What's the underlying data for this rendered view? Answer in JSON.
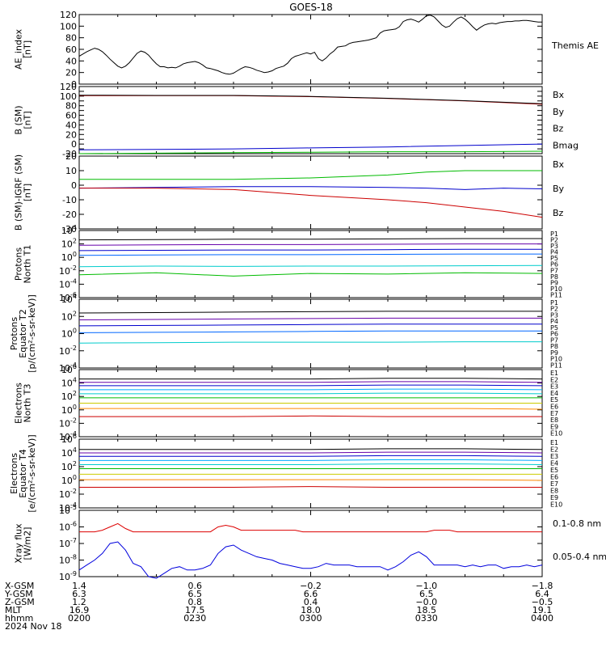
{
  "title": "GOES-18",
  "chart_data": [
    {
      "type": "line",
      "panel": "ae",
      "ylabel": [
        "AE_index",
        "[nT]"
      ],
      "ylim": [
        0,
        120
      ],
      "yticks": [
        0,
        20,
        40,
        60,
        80,
        100,
        120
      ],
      "x": [
        0,
        0.5,
        1,
        1.5,
        2,
        2.5,
        3,
        3.5,
        4,
        4.5,
        5,
        5.5,
        6,
        6.5,
        7,
        7.5,
        8,
        8.5,
        9,
        9.5,
        10,
        10.5,
        11,
        11.5,
        12,
        12.5,
        13,
        13.5,
        14,
        14.5,
        15,
        15.5,
        16,
        16.5,
        17,
        17.5,
        18,
        18.5,
        19,
        19.5,
        20,
        20.5,
        21,
        21.5,
        22,
        22.5,
        23,
        23.5,
        24,
        24.5,
        25,
        25.5,
        26,
        26.5,
        27,
        27.5,
        28,
        28.5,
        29,
        29.5,
        30,
        30.5,
        31,
        31.5,
        32,
        32.5,
        33,
        33.5,
        34,
        34.5,
        35,
        35.5,
        36,
        36.5,
        37,
        37.5,
        38,
        38.5,
        39,
        39.5,
        40,
        40.5,
        41,
        41.5,
        42,
        42.5,
        43,
        43.5,
        44,
        44.5,
        45,
        45.5,
        46,
        46.5,
        47,
        47.5,
        48,
        48.5,
        49,
        49.5,
        50,
        50.5,
        51,
        51.5,
        52,
        52.5,
        53,
        53.5,
        54,
        54.5,
        55,
        55.5,
        56,
        56.5,
        57,
        57.5,
        58,
        58.5,
        59,
        59.5,
        60
      ],
      "series": [
        {
          "name": "Themis AE",
          "color": "#000000",
          "values": [
            48,
            52,
            56,
            59,
            62,
            60,
            56,
            50,
            43,
            37,
            31,
            28,
            31,
            37,
            45,
            53,
            57,
            55,
            50,
            42,
            35,
            30,
            30,
            28,
            29,
            28,
            31,
            35,
            37,
            38,
            39,
            37,
            33,
            28,
            27,
            25,
            23,
            20,
            18,
            17,
            19,
            23,
            27,
            30,
            29,
            27,
            24,
            22,
            20,
            21,
            23,
            27,
            29,
            31,
            36,
            44,
            48,
            50,
            52,
            54,
            52,
            55,
            44,
            40,
            45,
            52,
            57,
            64,
            65,
            66,
            70,
            72,
            73,
            74,
            75,
            76,
            78,
            80,
            88,
            92,
            93,
            94,
            95,
            99,
            108,
            111,
            112,
            110,
            107,
            112,
            118,
            119,
            116,
            109,
            102,
            98,
            100,
            107,
            113,
            116,
            112,
            106,
            99,
            93,
            98,
            102,
            104,
            105,
            104,
            106,
            107,
            108,
            108,
            109,
            109,
            110,
            110,
            109,
            108,
            107,
            107
          ]
        }
      ]
    },
    {
      "type": "line",
      "panel": "bsm",
      "ylabel": [
        "B (SM)",
        "[nT]"
      ],
      "ylim": [
        -20,
        120
      ],
      "yticks": [
        -20,
        -10,
        0,
        10,
        20,
        30,
        40,
        50,
        60,
        70,
        80,
        90,
        100,
        110,
        120
      ],
      "ytick_labels": [
        -20,
        0,
        20,
        40,
        60,
        80,
        100,
        120
      ],
      "x": [
        0,
        10,
        20,
        30,
        40,
        50,
        60
      ],
      "series": [
        {
          "name": "Bx",
          "color": "#0000cc",
          "values": [
            -12,
            -11,
            -10,
            -8,
            -6,
            -3,
            0
          ]
        },
        {
          "name": "By",
          "color": "#00bb00",
          "values": [
            -20,
            -19,
            -18,
            -17,
            -16,
            -16,
            -15
          ]
        },
        {
          "name": "Bz",
          "color": "#cc0000",
          "values": [
            101,
            101,
            101,
            99,
            95,
            90,
            83
          ]
        },
        {
          "name": "Bmag",
          "color": "#000000",
          "values": [
            102,
            101.5,
            101.5,
            99.5,
            95.5,
            90.5,
            84
          ]
        }
      ]
    },
    {
      "type": "line",
      "panel": "bigrf",
      "ylabel": [
        "B (SM)-IGRF (SM)",
        "[nT]"
      ],
      "ylim": [
        -30,
        20
      ],
      "yticks": [
        -30,
        -20,
        -10,
        0,
        10,
        20
      ],
      "x": [
        0,
        10,
        20,
        30,
        40,
        45,
        50,
        55,
        60
      ],
      "series": [
        {
          "name": "Bx",
          "color": "#0000cc",
          "values": [
            -2,
            -1.5,
            -1,
            -1,
            -1.5,
            -2,
            -3,
            -2,
            -2.5
          ]
        },
        {
          "name": "By",
          "color": "#00bb00",
          "values": [
            4,
            4,
            4,
            5,
            7,
            9,
            10,
            10,
            10
          ]
        },
        {
          "name": "Bz",
          "color": "#cc0000",
          "values": [
            -2,
            -2,
            -3,
            -7,
            -10,
            -12,
            -15,
            -18,
            -22
          ]
        }
      ]
    },
    {
      "type": "line",
      "panel": "prot_t1",
      "ylabel": [
        "Protons",
        "North T1"
      ],
      "log": true,
      "ylim": [
        -6,
        4
      ],
      "yticks": [
        -6,
        -4,
        -2,
        0,
        2,
        4
      ],
      "x": [
        0,
        10,
        20,
        30,
        40,
        50,
        60
      ],
      "legend": [
        "P1",
        "P2",
        "P3",
        "P4",
        "P5",
        "P6",
        "P7",
        "P8",
        "P9",
        "P10",
        "P11"
      ],
      "series": [
        {
          "name": "P1",
          "color": "#000000",
          "values": [
            2.6,
            2.65,
            2.7,
            2.7,
            2.75,
            2.8,
            2.8
          ]
        },
        {
          "name": "P2",
          "color": "#6600aa",
          "values": [
            1.8,
            1.85,
            1.9,
            1.9,
            1.95,
            2.0,
            2.0
          ]
        },
        {
          "name": "P3",
          "color": "#0000cc",
          "values": [
            1.0,
            1.05,
            1.1,
            1.1,
            1.15,
            1.2,
            1.2
          ]
        },
        {
          "name": "P4",
          "color": "#0066ff",
          "values": [
            0.3,
            0.35,
            0.4,
            0.4,
            0.45,
            0.5,
            0.5
          ]
        },
        {
          "name": "P5",
          "color": "#00cccc",
          "values": [
            -1.4,
            -1.3,
            -1.35,
            -1.3,
            -1.3,
            -1.25,
            -1.2
          ]
        },
        {
          "name": "P6",
          "color": "#00bb00",
          "values": [
            -2.6,
            -2.3,
            -2.8,
            -2.4,
            -2.5,
            -2.3,
            -2.4
          ]
        }
      ]
    },
    {
      "type": "line",
      "panel": "prot_t2",
      "ylabel": [
        "Protons",
        "Equator T2",
        "[p/(cm²-s-sr-keV)]"
      ],
      "log": true,
      "ylim": [
        -4,
        4
      ],
      "yticks": [
        -4,
        -2,
        0,
        2,
        4
      ],
      "x": [
        0,
        10,
        20,
        30,
        40,
        50,
        60
      ],
      "legend": [
        "P1",
        "P2",
        "P3",
        "P4",
        "P5",
        "P6",
        "P7",
        "P8",
        "P9",
        "P10",
        "P11"
      ],
      "series": [
        {
          "name": "P1",
          "color": "#000000",
          "values": [
            2.4,
            2.45,
            2.5,
            2.55,
            2.6,
            2.6,
            2.6
          ]
        },
        {
          "name": "P2",
          "color": "#6600aa",
          "values": [
            1.6,
            1.65,
            1.7,
            1.75,
            1.8,
            1.8,
            1.8
          ]
        },
        {
          "name": "P3",
          "color": "#0000cc",
          "values": [
            0.9,
            0.95,
            1.0,
            1.05,
            1.1,
            1.1,
            1.1
          ]
        },
        {
          "name": "P4",
          "color": "#0066ff",
          "values": [
            0.1,
            0.15,
            0.2,
            0.25,
            0.3,
            0.3,
            0.3
          ]
        },
        {
          "name": "P5",
          "color": "#00cccc",
          "values": [
            -1.1,
            -1.05,
            -1.0,
            -1.0,
            -1.0,
            -0.95,
            -0.95
          ]
        }
      ]
    },
    {
      "type": "line",
      "panel": "elec_t3",
      "ylabel": [
        "Electrons",
        "North T3"
      ],
      "log": true,
      "ylim": [
        -4,
        6
      ],
      "yticks": [
        -4,
        -2,
        0,
        2,
        4,
        6
      ],
      "x": [
        0,
        10,
        20,
        30,
        40,
        50,
        60
      ],
      "legend": [
        "E1",
        "E2",
        "E3",
        "E4",
        "E5",
        "E6",
        "E7",
        "E8",
        "E9",
        "E10"
      ],
      "series": [
        {
          "name": "E1",
          "color": "#000000",
          "values": [
            4.6,
            4.6,
            4.6,
            4.6,
            4.7,
            4.7,
            4.6
          ]
        },
        {
          "name": "E2",
          "color": "#6600aa",
          "values": [
            4.1,
            4.1,
            4.1,
            4.1,
            4.2,
            4.2,
            4.1
          ]
        },
        {
          "name": "E3",
          "color": "#0000cc",
          "values": [
            3.6,
            3.6,
            3.6,
            3.6,
            3.7,
            3.7,
            3.6
          ]
        },
        {
          "name": "E4",
          "color": "#00aaff",
          "values": [
            3.0,
            3.0,
            3.0,
            3.0,
            3.1,
            3.1,
            3.0
          ]
        },
        {
          "name": "E5",
          "color": "#00cccc",
          "values": [
            2.4,
            2.4,
            2.4,
            2.4,
            2.5,
            2.5,
            2.4
          ]
        },
        {
          "name": "E6",
          "color": "#00bb00",
          "values": [
            1.8,
            1.8,
            1.8,
            1.8,
            1.8,
            1.8,
            1.8
          ]
        },
        {
          "name": "E7",
          "color": "#cccc00",
          "values": [
            1.0,
            1.0,
            1.0,
            1.0,
            1.0,
            1.0,
            1.0
          ]
        },
        {
          "name": "E8",
          "color": "#ff8800",
          "values": [
            0.2,
            0.2,
            0.2,
            0.2,
            0.2,
            0.2,
            0.1
          ]
        },
        {
          "name": "E9",
          "color": "#cc0000",
          "values": [
            -1.0,
            -1.0,
            -1.0,
            -0.9,
            -1.0,
            -1.0,
            -1.0
          ]
        }
      ]
    },
    {
      "type": "line",
      "panel": "elec_t4",
      "ylabel": [
        "Electrons",
        "Equator T4",
        "[e/(cm²-s-sr-keV)]"
      ],
      "log": true,
      "ylim": [
        -4,
        6
      ],
      "yticks": [
        -4,
        -2,
        0,
        2,
        4,
        6
      ],
      "x": [
        0,
        10,
        20,
        30,
        40,
        50,
        60
      ],
      "legend": [
        "E1",
        "E2",
        "E3",
        "E4",
        "E5",
        "E6",
        "E7",
        "E8",
        "E9",
        "E10"
      ],
      "series": [
        {
          "name": "E1",
          "color": "#000000",
          "values": [
            4.5,
            4.5,
            4.5,
            4.5,
            4.6,
            4.6,
            4.5
          ]
        },
        {
          "name": "E2",
          "color": "#6600aa",
          "values": [
            4.0,
            4.0,
            4.0,
            4.0,
            4.1,
            4.1,
            4.0
          ]
        },
        {
          "name": "E3",
          "color": "#0000cc",
          "values": [
            3.5,
            3.5,
            3.5,
            3.5,
            3.6,
            3.6,
            3.5
          ]
        },
        {
          "name": "E4",
          "color": "#00aaff",
          "values": [
            2.9,
            2.9,
            2.9,
            2.9,
            3.0,
            3.0,
            2.9
          ]
        },
        {
          "name": "E5",
          "color": "#00cccc",
          "values": [
            2.3,
            2.3,
            2.3,
            2.3,
            2.4,
            2.4,
            2.3
          ]
        },
        {
          "name": "E6",
          "color": "#00bb00",
          "values": [
            1.7,
            1.7,
            1.7,
            1.7,
            1.7,
            1.7,
            1.7
          ]
        },
        {
          "name": "E7",
          "color": "#cccc00",
          "values": [
            0.9,
            0.9,
            0.9,
            0.9,
            0.9,
            0.9,
            0.9
          ]
        },
        {
          "name": "E8",
          "color": "#ff8800",
          "values": [
            0.1,
            0.1,
            0.1,
            0.1,
            0.1,
            0.1,
            0.0
          ]
        },
        {
          "name": "E9",
          "color": "#cc0000",
          "values": [
            -1.0,
            -1.0,
            -1.0,
            -0.9,
            -1.0,
            -1.0,
            -1.0
          ]
        }
      ]
    },
    {
      "type": "line",
      "panel": "xray",
      "ylabel": [
        "Xray flux",
        "[W/m2]"
      ],
      "log": true,
      "ylim": [
        -9,
        -5
      ],
      "yticks": [
        -9,
        -8,
        -7,
        -6,
        -5
      ],
      "x": [
        0,
        1,
        2,
        3,
        4,
        5,
        6,
        7,
        8,
        9,
        10,
        11,
        12,
        13,
        14,
        15,
        16,
        17,
        18,
        19,
        20,
        21,
        22,
        23,
        24,
        25,
        26,
        27,
        28,
        29,
        30,
        31,
        32,
        33,
        34,
        35,
        36,
        37,
        38,
        39,
        40,
        41,
        42,
        43,
        44,
        45,
        46,
        47,
        48,
        49,
        50,
        51,
        52,
        53,
        54,
        55,
        56,
        57,
        58,
        59,
        60
      ],
      "series": [
        {
          "name": "0.1-0.8 nm",
          "color": "#dd0000",
          "values": [
            -6.3,
            -6.3,
            -6.3,
            -6.2,
            -6.0,
            -5.8,
            -6.1,
            -6.3,
            -6.3,
            -6.3,
            -6.3,
            -6.3,
            -6.3,
            -6.3,
            -6.3,
            -6.3,
            -6.3,
            -6.3,
            -6.0,
            -5.9,
            -6.0,
            -6.2,
            -6.2,
            -6.2,
            -6.2,
            -6.2,
            -6.2,
            -6.2,
            -6.2,
            -6.3,
            -6.3,
            -6.3,
            -6.3,
            -6.3,
            -6.3,
            -6.3,
            -6.3,
            -6.3,
            -6.3,
            -6.3,
            -6.3,
            -6.3,
            -6.3,
            -6.3,
            -6.3,
            -6.3,
            -6.2,
            -6.2,
            -6.2,
            -6.3,
            -6.3,
            -6.3,
            -6.3,
            -6.3,
            -6.3,
            -6.3,
            -6.3,
            -6.3,
            -6.3,
            -6.3,
            -6.3
          ]
        },
        {
          "name": "0.05-0.4 nm",
          "color": "#0000dd",
          "values": [
            -8.6,
            -8.3,
            -8.0,
            -7.6,
            -7.0,
            -6.9,
            -7.4,
            -8.2,
            -8.4,
            -9.0,
            -9.1,
            -8.8,
            -8.5,
            -8.4,
            -8.6,
            -8.6,
            -8.5,
            -8.3,
            -7.6,
            -7.2,
            -7.1,
            -7.4,
            -7.6,
            -7.8,
            -7.9,
            -8.0,
            -8.2,
            -8.3,
            -8.4,
            -8.5,
            -8.5,
            -8.4,
            -8.2,
            -8.3,
            -8.3,
            -8.3,
            -8.4,
            -8.4,
            -8.4,
            -8.4,
            -8.6,
            -8.4,
            -8.1,
            -7.7,
            -7.5,
            -7.8,
            -8.3,
            -8.3,
            -8.3,
            -8.3,
            -8.4,
            -8.3,
            -8.4,
            -8.3,
            -8.3,
            -8.5,
            -8.4,
            -8.4,
            -8.3,
            -8.4,
            -8.3
          ]
        }
      ]
    }
  ],
  "xaxis": {
    "tick_times": [
      "0200",
      "0230",
      "0300",
      "0330",
      "0400"
    ],
    "row_labels": [
      "X-GSM",
      "Y-GSM",
      "Z-GSM",
      "MLT",
      "hhmm",
      "2024 Nov 18"
    ],
    "rows": [
      [
        "1.4",
        "0.6",
        "−0.2",
        "−1.0",
        "−1.8"
      ],
      [
        "6.3",
        "6.5",
        "6.6",
        "6.5",
        "6.4"
      ],
      [
        "1.2",
        "0.8",
        "0.4",
        "−0.0",
        "−0.5"
      ],
      [
        "16.9",
        "17.5",
        "18.0",
        "18.5",
        "19.1"
      ],
      [
        "0200",
        "0230",
        "0300",
        "0330",
        "0400"
      ]
    ]
  }
}
